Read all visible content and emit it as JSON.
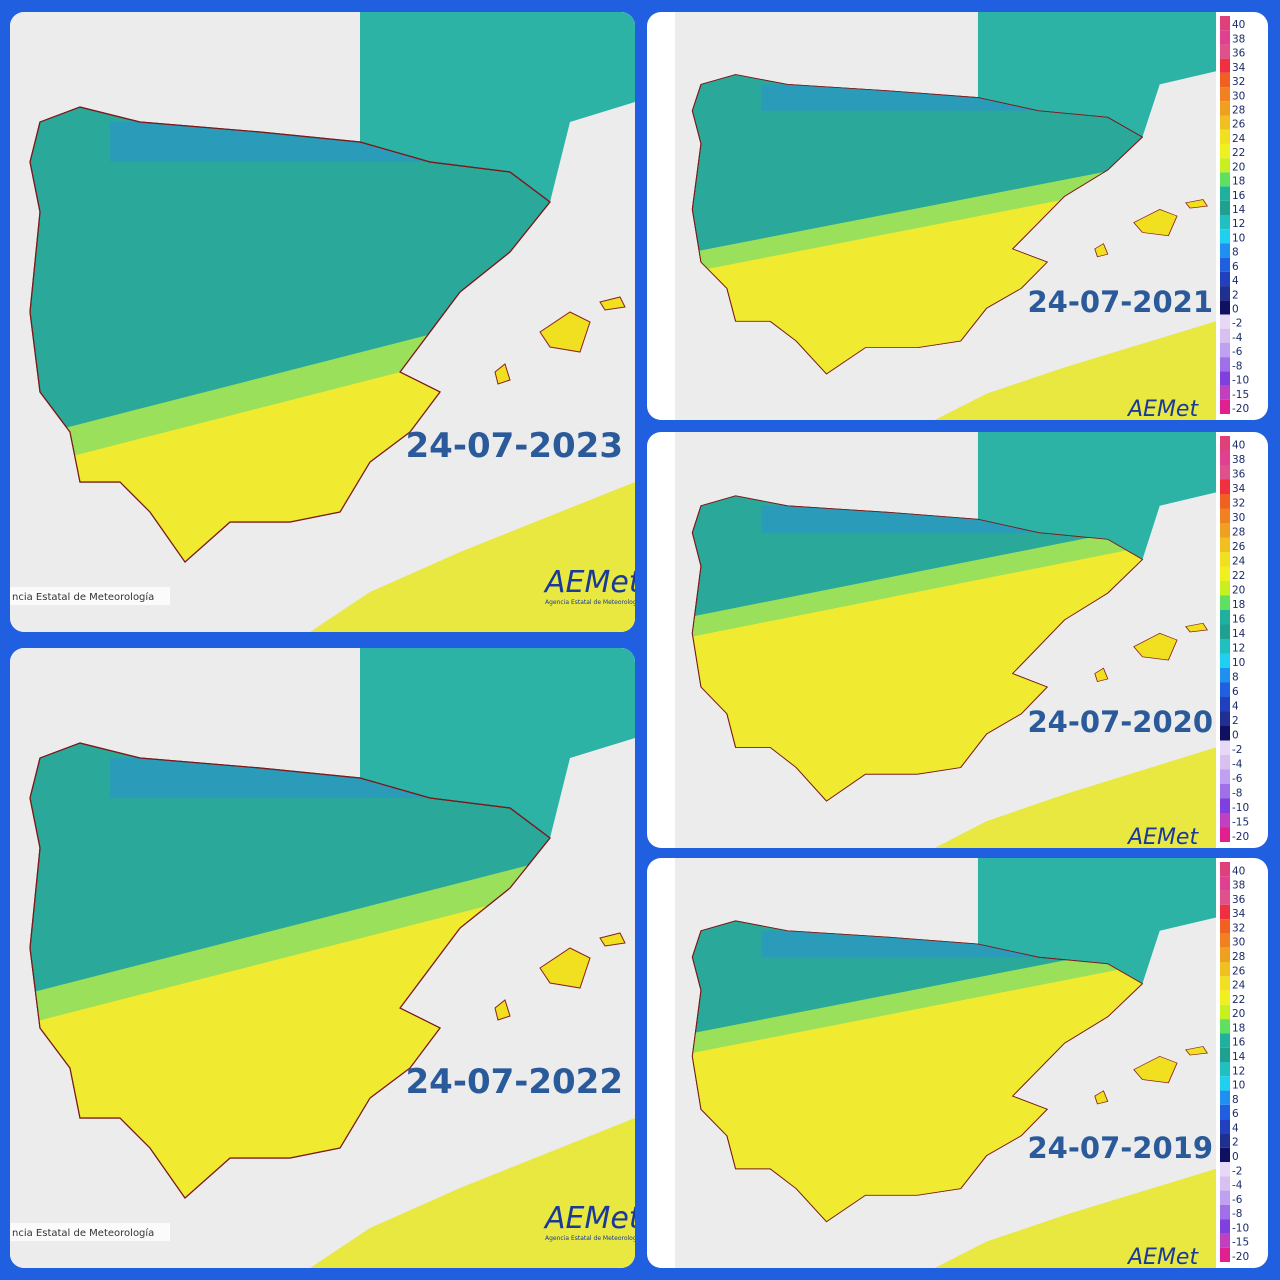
{
  "panels": [
    {
      "date": "24-07-2023",
      "credit": "ncia Estatal de Meteorología",
      "logo": "AEMet",
      "logo_sub": "Agencia Estatal de Meteorología"
    },
    {
      "date": "24-07-2022",
      "credit": "ncia Estatal de Meteorología",
      "logo": "AEMet",
      "logo_sub": "Agencia Estatal de Meteorología"
    },
    {
      "date": "24-07-2021",
      "logo": "AEMet"
    },
    {
      "date": "24-07-2020",
      "logo": "AEMet"
    },
    {
      "date": "24-07-2019",
      "logo": "AEMet"
    }
  ],
  "legend": {
    "labels": [
      "40",
      "38",
      "36",
      "34",
      "32",
      "30",
      "28",
      "26",
      "24",
      "22",
      "20",
      "18",
      "16",
      "14",
      "12",
      "10",
      "8",
      "6",
      "4",
      "2",
      "0",
      "-2",
      "-4",
      "-6",
      "-8",
      "-10",
      "-15",
      "-20"
    ],
    "colors": [
      "#e0407a",
      "#e04090",
      "#e0508a",
      "#f03040",
      "#f06020",
      "#f08020",
      "#f0a020",
      "#f0c020",
      "#f0e020",
      "#f0f020",
      "#c8f020",
      "#60e060",
      "#20b0a0",
      "#20a090",
      "#20c0c0",
      "#20d0f0",
      "#2090f0",
      "#2060e0",
      "#2040c0",
      "#203090",
      "#101060",
      "#e8d8f8",
      "#d8c0f0",
      "#c0a0f0",
      "#a070e8",
      "#8040e0",
      "#c040c0",
      "#e02090"
    ]
  }
}
